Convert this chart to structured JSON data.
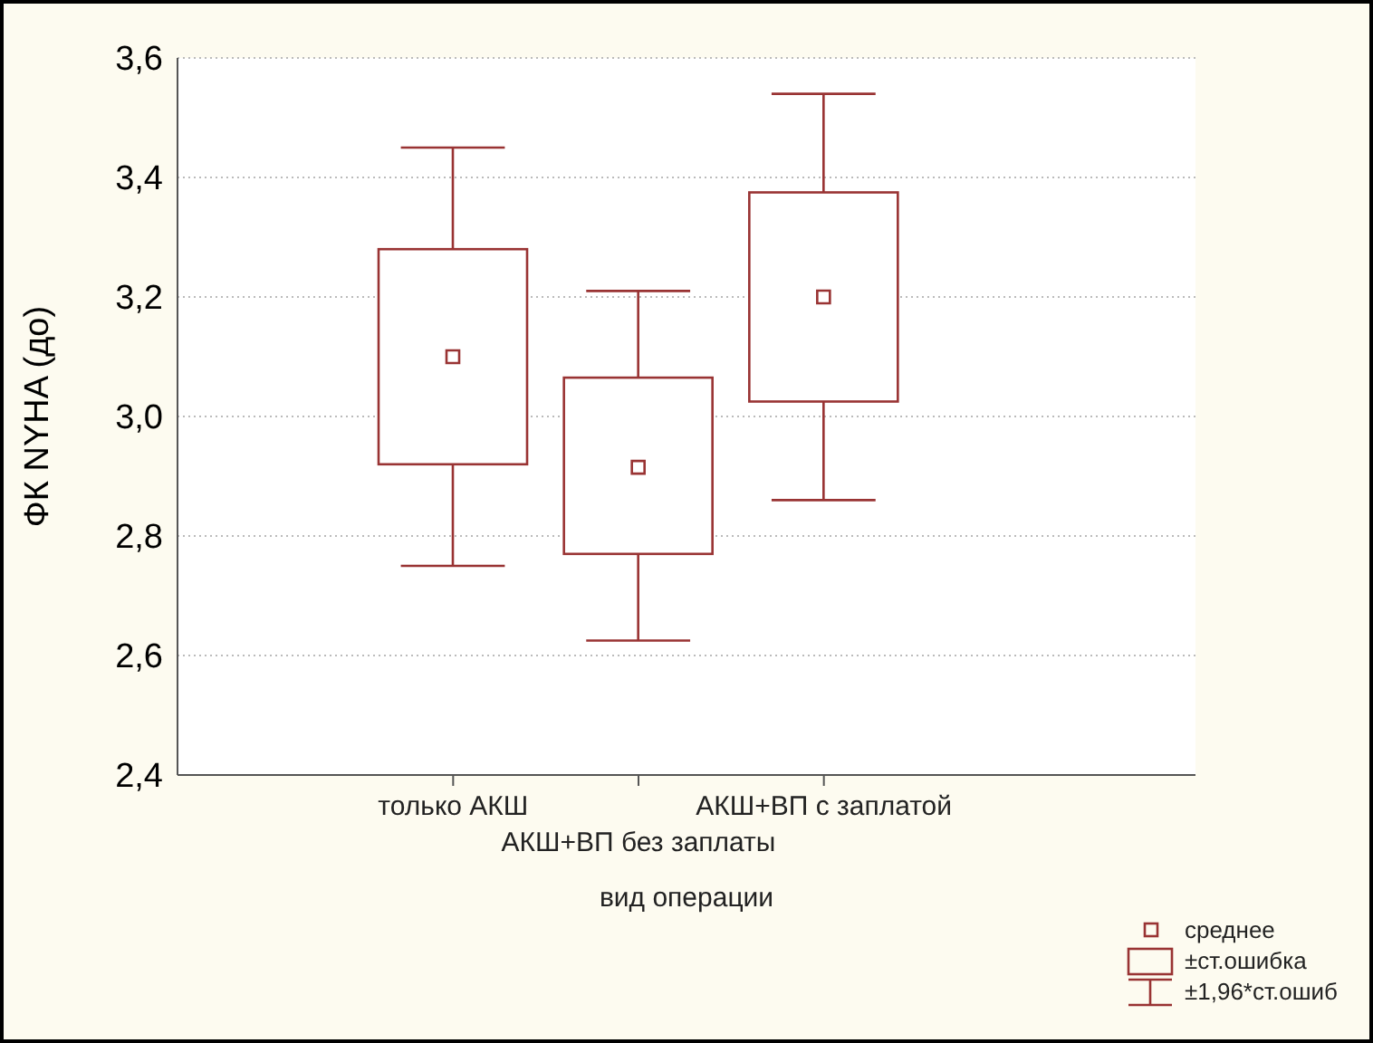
{
  "chart_data": {
    "type": "box",
    "xlabel": "вид операции",
    "ylabel": "ФК NYHA (до)",
    "categories": [
      "только АКШ",
      "АКШ+ВП без заплаты",
      "АКШ+ВП с заплатой"
    ],
    "boxes": [
      {
        "low": 2.75,
        "q1": 2.92,
        "median": 3.1,
        "q3": 3.28,
        "high": 3.45
      },
      {
        "low": 2.625,
        "q1": 2.77,
        "median": 2.915,
        "q3": 3.065,
        "high": 3.21
      },
      {
        "low": 2.86,
        "q1": 3.025,
        "median": 3.2,
        "q3": 3.375,
        "high": 3.54
      }
    ],
    "color": "#993333",
    "ylim": [
      2.4,
      3.6
    ],
    "yticks": [
      {
        "value": 2.4,
        "label": "2,4"
      },
      {
        "value": 2.6,
        "label": "2,6"
      },
      {
        "value": 2.8,
        "label": "2,8"
      },
      {
        "value": 3.0,
        "label": "3,0"
      },
      {
        "value": 3.2,
        "label": "3,2"
      },
      {
        "value": 3.4,
        "label": "3,4"
      },
      {
        "value": 3.6,
        "label": "3,6"
      }
    ],
    "grid": "y",
    "annotations": [
      "среднее",
      "±ст.ошибка",
      "±1,96*ст.ошиб"
    ]
  }
}
